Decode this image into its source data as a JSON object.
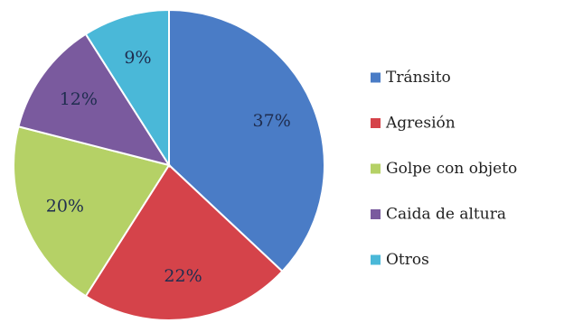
{
  "chart_data": {
    "type": "pie",
    "categories": [
      "Tránsito",
      "Agresión",
      "Golpe con objeto",
      "Caida de altura",
      "Otros"
    ],
    "values": [
      37,
      22,
      20,
      12,
      9
    ],
    "labels": [
      "37%",
      "22%",
      "20%",
      "12%",
      "9%"
    ],
    "colors": [
      "#4a7cc6",
      "#d5434a",
      "#b5d166",
      "#7a5a9e",
      "#4ab8d8"
    ],
    "title": "",
    "legend_position": "right"
  }
}
